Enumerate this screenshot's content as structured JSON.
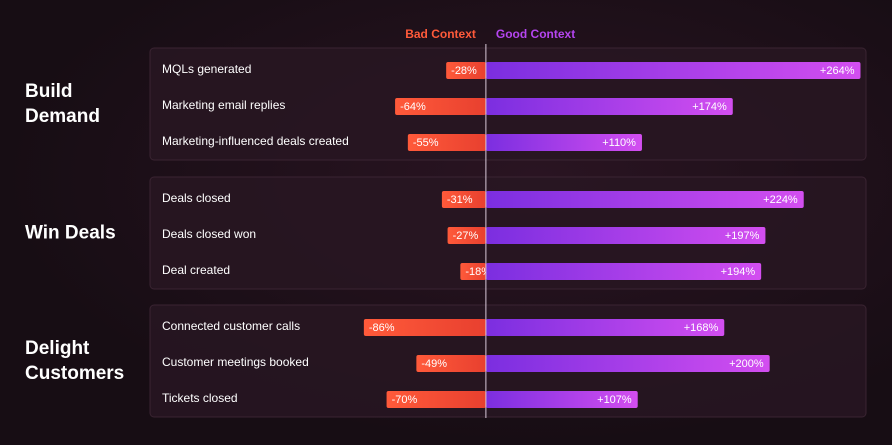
{
  "chart_data": {
    "type": "bar",
    "orientation": "horizontal",
    "series": [
      {
        "name": "Bad Context",
        "color": "#ff5a3a",
        "values": [
          -28,
          -64,
          -55,
          -31,
          -27,
          -18,
          -86,
          -49,
          -70
        ],
        "value_labels": [
          "-28%",
          "-64%",
          "-55%",
          "-31%",
          "-27%",
          "-18%",
          "-86%",
          "-49%",
          "-70%"
        ]
      },
      {
        "name": "Good Context",
        "color": "#b545f0",
        "values": [
          264,
          174,
          110,
          224,
          197,
          194,
          168,
          200,
          107
        ],
        "value_labels": [
          "+264%",
          "+174%",
          "+110%",
          "+224%",
          "+197%",
          "+194%",
          "+168%",
          "+200%",
          "+107%"
        ]
      }
    ],
    "groups": [
      {
        "label": "Build Demand",
        "categories": [
          "MQLs generated",
          "Marketing email replies",
          "Marketing-influenced deals created"
        ]
      },
      {
        "label": "Win Deals",
        "categories": [
          "Deals closed",
          "Deals closed won",
          "Deal created"
        ]
      },
      {
        "label": "Delight Customers",
        "categories": [
          "Connected customer calls",
          "Customer meetings booked",
          "Tickets closed"
        ]
      }
    ],
    "xlim": [
      -100,
      270
    ]
  }
}
